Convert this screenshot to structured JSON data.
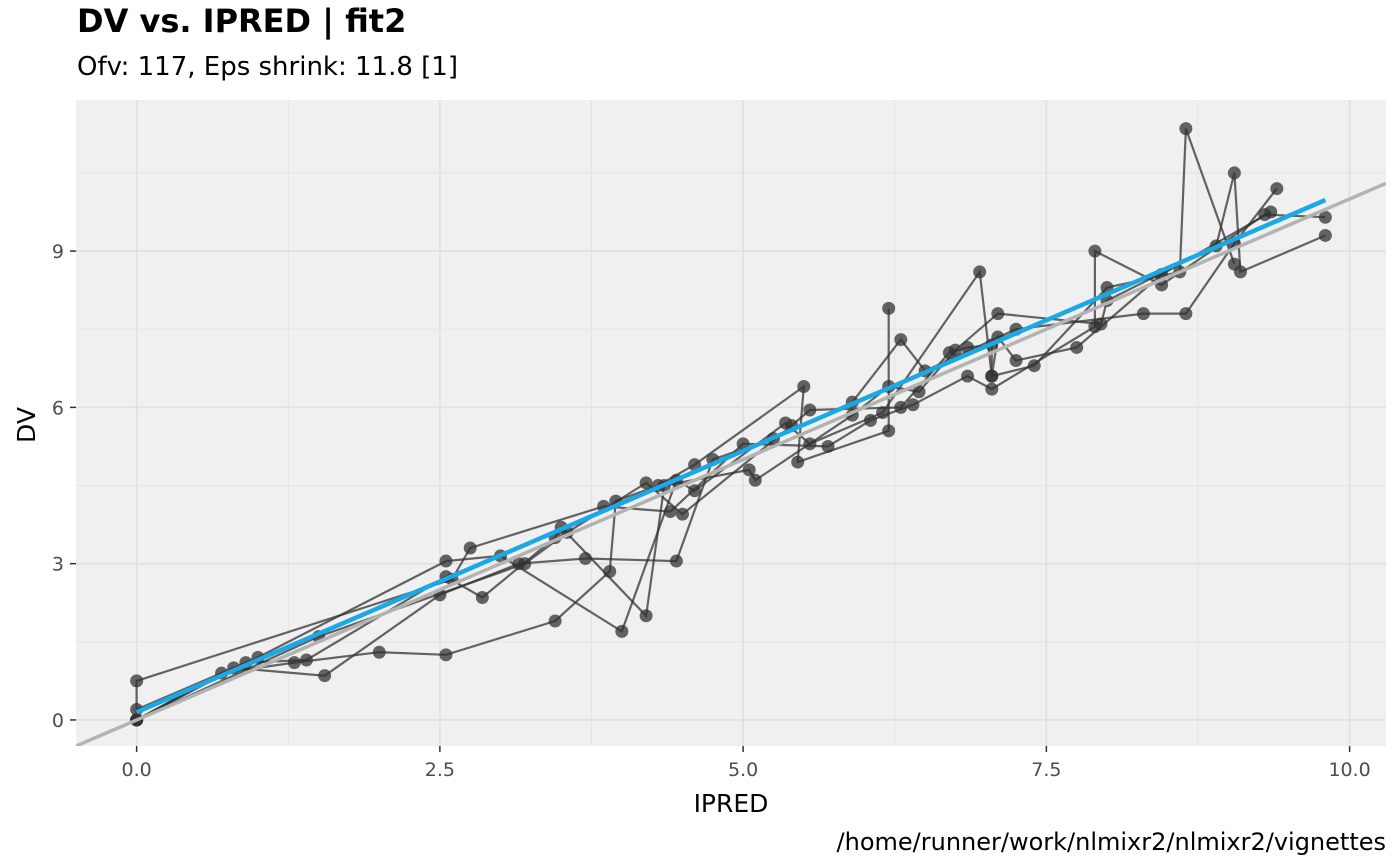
{
  "header": {
    "title": "DV vs. IPRED | fit2",
    "subtitle": "Ofv: 117, Eps shrink: 11.8 [1]"
  },
  "footer": {
    "caption": "/home/runner/work/nlmixr2/nlmixr2/vignettes"
  },
  "colors": {
    "panel_bg": "#f0f0f0",
    "grid": "#e0e0e0",
    "points": "#333333",
    "identity_line": "#b3b3b3",
    "smooth_line": "#1aa8e6"
  },
  "chart_data": {
    "type": "scatter",
    "title": "DV vs. IPRED | fit2",
    "subtitle": "Ofv: 117, Eps shrink: 11.8 [1]",
    "xlabel": "IPRED",
    "ylabel": "DV",
    "xlim": [
      -0.5,
      10.3
    ],
    "ylim": [
      -0.5,
      11.9
    ],
    "xticks": [
      0,
      2.5,
      5,
      7.5,
      10
    ],
    "xtick_labels": [
      "0.0",
      "2.5",
      "5.0",
      "7.5",
      "10.0"
    ],
    "yticks": [
      0,
      3,
      6,
      9
    ],
    "ytick_labels": [
      "0",
      "3",
      "6",
      "9"
    ],
    "grid": true,
    "reference_line": {
      "name": "identity",
      "slope": 1,
      "intercept": 0
    },
    "smooth_line": {
      "x": [
        0,
        9.8
      ],
      "y": [
        0.15,
        9.98
      ]
    },
    "series": [
      {
        "points": [
          [
            0,
            0
          ],
          [
            0.7,
            0.9
          ],
          [
            1.3,
            1.1
          ],
          [
            2.0,
            1.3
          ],
          [
            2.55,
            1.25
          ],
          [
            3.45,
            1.9
          ],
          [
            3.9,
            2.85
          ],
          [
            3.95,
            4.2
          ],
          [
            4.3,
            4.5
          ],
          [
            4.6,
            4.9
          ],
          [
            5.5,
            6.4
          ],
          [
            5.45,
            4.95
          ],
          [
            6.2,
            5.55
          ],
          [
            6.2,
            7.9
          ]
        ]
      },
      {
        "points": [
          [
            0,
            0
          ],
          [
            0.8,
            1.0
          ],
          [
            1.55,
            0.85
          ],
          [
            2.5,
            2.4
          ],
          [
            3.15,
            3.0
          ],
          [
            3.7,
            3.1
          ],
          [
            4.45,
            3.05
          ],
          [
            4.75,
            5.0
          ],
          [
            5.25,
            5.4
          ],
          [
            5.9,
            6.1
          ],
          [
            6.3,
            7.3
          ],
          [
            6.5,
            6.7
          ],
          [
            7.25,
            7.5
          ],
          [
            8.3,
            7.8
          ],
          [
            8.65,
            7.8
          ],
          [
            9.05,
            9.15
          ],
          [
            9.4,
            10.2
          ]
        ]
      },
      {
        "points": [
          [
            0,
            0.2
          ],
          [
            1.0,
            1.2
          ],
          [
            2.55,
            3.05
          ],
          [
            3.0,
            3.15
          ],
          [
            4.0,
            1.7
          ],
          [
            4.45,
            4.6
          ],
          [
            4.6,
            4.4
          ],
          [
            5.35,
            5.7
          ],
          [
            5.55,
            5.3
          ],
          [
            6.15,
            5.9
          ],
          [
            6.95,
            8.6
          ],
          [
            7.05,
            6.6
          ],
          [
            7.4,
            6.8
          ],
          [
            8.0,
            8.3
          ],
          [
            8.6,
            8.6
          ],
          [
            8.65,
            11.35
          ],
          [
            9.05,
            8.75
          ]
        ]
      },
      {
        "points": [
          [
            0,
            0
          ],
          [
            0.9,
            1.1
          ],
          [
            1.4,
            1.15
          ],
          [
            2.55,
            2.75
          ],
          [
            2.85,
            2.35
          ],
          [
            3.45,
            3.5
          ],
          [
            3.5,
            3.7
          ],
          [
            4.2,
            2.0
          ],
          [
            4.35,
            4.5
          ],
          [
            5.05,
            4.8
          ],
          [
            5.1,
            4.6
          ],
          [
            5.9,
            5.85
          ],
          [
            6.2,
            6.4
          ],
          [
            6.45,
            6.3
          ],
          [
            6.75,
            7.1
          ],
          [
            7.1,
            7.8
          ],
          [
            7.95,
            7.6
          ],
          [
            8.0,
            8.05
          ],
          [
            8.9,
            9.1
          ],
          [
            9.05,
            10.5
          ],
          [
            9.1,
            8.6
          ],
          [
            9.8,
            9.3
          ]
        ]
      },
      {
        "points": [
          [
            0,
            0
          ],
          [
            0,
            0.75
          ],
          [
            2.6,
            2.7
          ],
          [
            2.75,
            3.3
          ],
          [
            3.85,
            4.1
          ],
          [
            4.4,
            4.0
          ],
          [
            5.0,
            5.3
          ],
          [
            5.7,
            5.25
          ],
          [
            6.05,
            5.75
          ],
          [
            6.4,
            6.05
          ],
          [
            6.85,
            6.6
          ],
          [
            7.05,
            6.35
          ],
          [
            7.9,
            7.55
          ],
          [
            7.9,
            9.0
          ],
          [
            8.45,
            8.35
          ],
          [
            9.3,
            9.7
          ],
          [
            9.8,
            9.65
          ]
        ]
      },
      {
        "points": [
          [
            0,
            0
          ],
          [
            1.5,
            1.6
          ],
          [
            3.2,
            3.0
          ],
          [
            3.55,
            3.6
          ],
          [
            4.2,
            4.55
          ],
          [
            4.5,
            3.95
          ],
          [
            5.4,
            5.65
          ],
          [
            5.55,
            5.95
          ],
          [
            6.3,
            6.0
          ],
          [
            6.7,
            7.05
          ],
          [
            6.85,
            7.15
          ],
          [
            7.05,
            7.2
          ],
          [
            7.05,
            6.6
          ],
          [
            7.1,
            7.35
          ],
          [
            7.25,
            6.9
          ],
          [
            7.75,
            7.15
          ],
          [
            8.45,
            8.55
          ],
          [
            9.35,
            9.75
          ]
        ]
      }
    ]
  }
}
